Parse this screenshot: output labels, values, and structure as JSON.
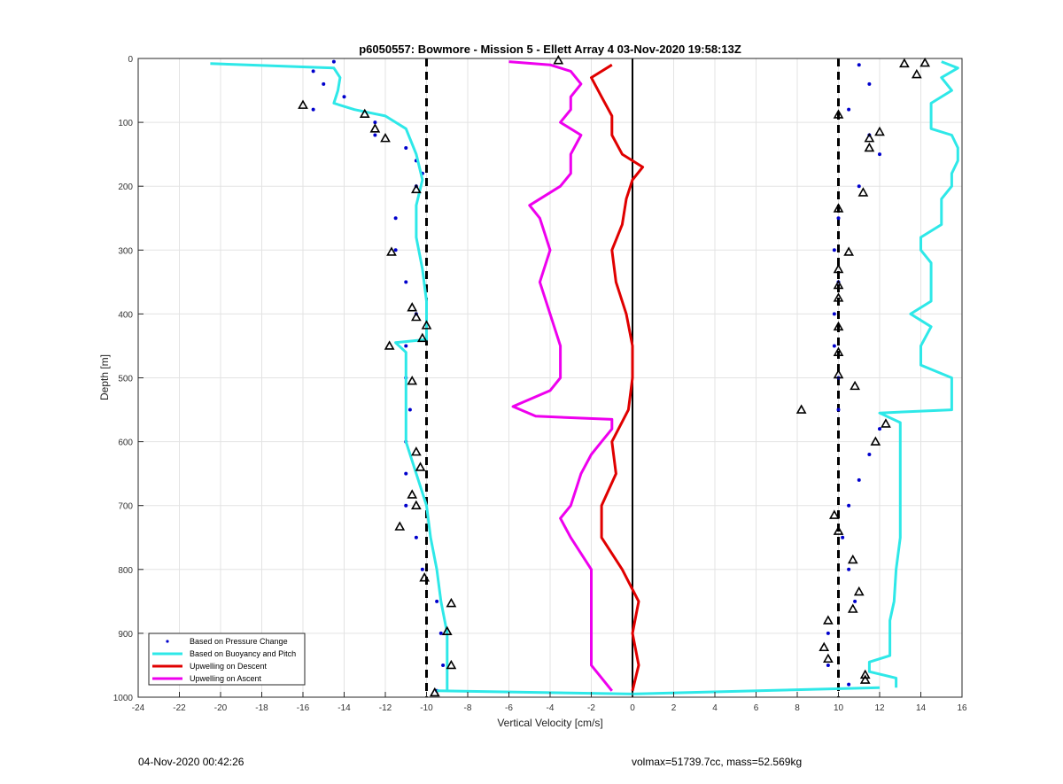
{
  "footer": {
    "timestamp": "04-Nov-2020 00:42:26",
    "info": "volmax=51739.7cc, mass=52.569kg"
  },
  "chart_data": {
    "type": "line",
    "title": "p6050557: Bowmore - Mission 5 - Ellett Array 4 03-Nov-2020 19:58:13Z",
    "xlabel": "Vertical Velocity [cm/s]",
    "ylabel": "Depth [m]",
    "xlim": [
      -24,
      16
    ],
    "ylim": [
      0,
      1000
    ],
    "y_reversed": true,
    "x_ticks": [
      -24,
      -22,
      -20,
      -18,
      -16,
      -14,
      -12,
      -10,
      -8,
      -6,
      -4,
      -2,
      0,
      2,
      4,
      6,
      8,
      10,
      12,
      14,
      16
    ],
    "y_ticks": [
      0,
      100,
      200,
      300,
      400,
      500,
      600,
      700,
      800,
      900,
      1000
    ],
    "grid": true,
    "legend_position": "bottom-left",
    "reference_lines": [
      {
        "x": -10,
        "style": "dashed",
        "color": "#000000"
      },
      {
        "x": 10,
        "style": "dashed",
        "color": "#000000"
      },
      {
        "x": 0,
        "style": "solid",
        "color": "#000000"
      }
    ],
    "series": [
      {
        "name": "Based on Pressure Change",
        "kind": "scatter",
        "color": "#0000cc",
        "groups": [
          {
            "depth": [
              5,
              20,
              40,
              60,
              80,
              100,
              120,
              140,
              160,
              180,
              200,
              250,
              300,
              350,
              400,
              450,
              500,
              550,
              600,
              650,
              700,
              750,
              800,
              850,
              900,
              950,
              990
            ],
            "x": [
              -14.5,
              -15.5,
              -15,
              -14,
              -15.5,
              -12.5,
              -12.5,
              -11,
              -10.5,
              -10.2,
              -10.5,
              -11.5,
              -11.5,
              -11,
              -10.5,
              -11,
              -11,
              -10.8,
              -11,
              -11,
              -11,
              -10.5,
              -10.2,
              -9.5,
              -9.3,
              -9.2,
              -9.5
            ]
          },
          {
            "depth": [
              10,
              40,
              80,
              120,
              150,
              200,
              250,
              300,
              350,
              400,
              450,
              500,
              550,
              580,
              620,
              660,
              700,
              750,
              800,
              850,
              900,
              950,
              980
            ],
            "x": [
              11,
              11.5,
              10.5,
              11.5,
              12,
              11,
              10,
              9.8,
              10,
              9.8,
              9.8,
              10,
              10,
              12,
              11.5,
              11,
              10.5,
              10.2,
              10.5,
              10.8,
              9.5,
              9.5,
              10.5
            ]
          }
        ]
      },
      {
        "name": "Based on Buoyancy and Pitch",
        "kind": "line",
        "color": "#2ee8e8",
        "groups": [
          {
            "depth": [
              8,
              15,
              30,
              50,
              70,
              80,
              90,
              110,
              150,
              190,
              230,
              280,
              330,
              380,
              420,
              440,
              445,
              460,
              500,
              550,
              600,
              650,
              700,
              750,
              800,
              850,
              900,
              950,
              990
            ],
            "x": [
              -20.5,
              -14.5,
              -14.2,
              -14.3,
              -14.5,
              -13.5,
              -12,
              -11,
              -10.5,
              -10.2,
              -10.5,
              -10.5,
              -10.2,
              -10,
              -10,
              -10,
              -11.5,
              -11,
              -11,
              -11,
              -11,
              -10.5,
              -10,
              -9.8,
              -9.5,
              -9.3,
              -9,
              -9,
              -9
            ]
          },
          {
            "depth": [
              990,
              995,
              985
            ],
            "x": [
              -9.5,
              0,
              12
            ]
          },
          {
            "depth": [
              985,
              970,
              960,
              945,
              935,
              920,
              900,
              880,
              850,
              800,
              750,
              700,
              650,
              600,
              570,
              555,
              550,
              540,
              500,
              480,
              450,
              420,
              400,
              380,
              350,
              320,
              300,
              280,
              260,
              240,
              220,
              200,
              180,
              160,
              140,
              120,
              110,
              90,
              70,
              50,
              30,
              15,
              5
            ],
            "x": [
              12.8,
              12.8,
              11.5,
              11.5,
              12.5,
              12.5,
              12.5,
              12.5,
              12.7,
              12.8,
              13,
              13,
              13,
              13,
              13,
              12,
              15.5,
              15.5,
              15.5,
              14,
              14,
              14.5,
              13.5,
              14.5,
              14.5,
              14.5,
              14,
              14,
              15,
              15,
              15,
              15.5,
              15.5,
              15.8,
              15.8,
              15.5,
              14.5,
              14.5,
              14.5,
              15.5,
              15,
              15.8,
              15
            ]
          }
        ]
      },
      {
        "name": "Upwelling on Descent",
        "kind": "line",
        "color": "#e00000",
        "groups": [
          {
            "depth": [
              10,
              30,
              60,
              90,
              120,
              150,
              170,
              190,
              220,
              260,
              300,
              350,
              400,
              450,
              500,
              550,
              600,
              650,
              700,
              750,
              800,
              850,
              900,
              950,
              990
            ],
            "x": [
              -1,
              -2,
              -1.5,
              -1,
              -1,
              -0.5,
              0.5,
              0,
              -0.3,
              -0.5,
              -1,
              -0.8,
              -0.3,
              0,
              0,
              -0.2,
              -1,
              -0.8,
              -1.5,
              -1.5,
              -0.5,
              0.3,
              0,
              0.3,
              0
            ]
          }
        ]
      },
      {
        "name": "Upwelling on Ascent",
        "kind": "line",
        "color": "#ee00ee",
        "groups": [
          {
            "depth": [
              990,
              950,
              900,
              850,
              800,
              750,
              720,
              700,
              650,
              620,
              600,
              580,
              565,
              560,
              545,
              520,
              500,
              450,
              400,
              350,
              300,
              250,
              230,
              200,
              180,
              150,
              120,
              100,
              80,
              60,
              40,
              20,
              10,
              5
            ],
            "x": [
              -1,
              -2,
              -2,
              -2,
              -2,
              -3,
              -3.5,
              -3,
              -2.5,
              -2,
              -1.5,
              -1,
              -1,
              -4.7,
              -5.8,
              -4,
              -3.5,
              -3.5,
              -4,
              -4.5,
              -4,
              -4.5,
              -5,
              -3.5,
              -3,
              -3,
              -2.5,
              -3.5,
              -3,
              -3,
              -2.5,
              -3,
              -4,
              -6
            ]
          }
        ]
      }
    ],
    "markers": [
      {
        "style": "triangle",
        "color": "#000000",
        "points": [
          [
            -16,
            73
          ],
          [
            -13,
            87
          ],
          [
            -12.5,
            110
          ],
          [
            -12,
            125
          ],
          [
            -10.5,
            205
          ],
          [
            -11.7,
            303
          ],
          [
            -10.7,
            390
          ],
          [
            -10.5,
            405
          ],
          [
            -10,
            418
          ],
          [
            -10.2,
            438
          ],
          [
            -11.8,
            450
          ],
          [
            -10.7,
            505
          ],
          [
            -10.5,
            616
          ],
          [
            -10.3,
            640
          ],
          [
            -10.7,
            683
          ],
          [
            -10.5,
            700
          ],
          [
            -11.3,
            733
          ],
          [
            -10.1,
            813
          ],
          [
            -8.8,
            853
          ],
          [
            -9,
            897
          ],
          [
            -8.8,
            950
          ],
          [
            -9.6,
            993
          ],
          [
            -3.6,
            3
          ],
          [
            13.2,
            8
          ],
          [
            14.2,
            7
          ],
          [
            13.8,
            25
          ],
          [
            10,
            88
          ],
          [
            12,
            115
          ],
          [
            11.5,
            125
          ],
          [
            11.5,
            140
          ],
          [
            11.2,
            210
          ],
          [
            10,
            235
          ],
          [
            10.5,
            303
          ],
          [
            10,
            330
          ],
          [
            10,
            355
          ],
          [
            10,
            375
          ],
          [
            10,
            420
          ],
          [
            10,
            460
          ],
          [
            10,
            495
          ],
          [
            10.8,
            513
          ],
          [
            8.2,
            550
          ],
          [
            12.3,
            572
          ],
          [
            11.8,
            600
          ],
          [
            9.8,
            715
          ],
          [
            10,
            740
          ],
          [
            10.7,
            785
          ],
          [
            11,
            835
          ],
          [
            10.7,
            862
          ],
          [
            9.5,
            880
          ],
          [
            9.3,
            922
          ],
          [
            9.5,
            940
          ],
          [
            11.3,
            965
          ],
          [
            11.3,
            973
          ]
        ]
      }
    ],
    "legend": [
      "Based on Pressure Change",
      "Based on Buoyancy and Pitch",
      "Upwelling on Descent",
      "Upwelling on Ascent"
    ]
  }
}
